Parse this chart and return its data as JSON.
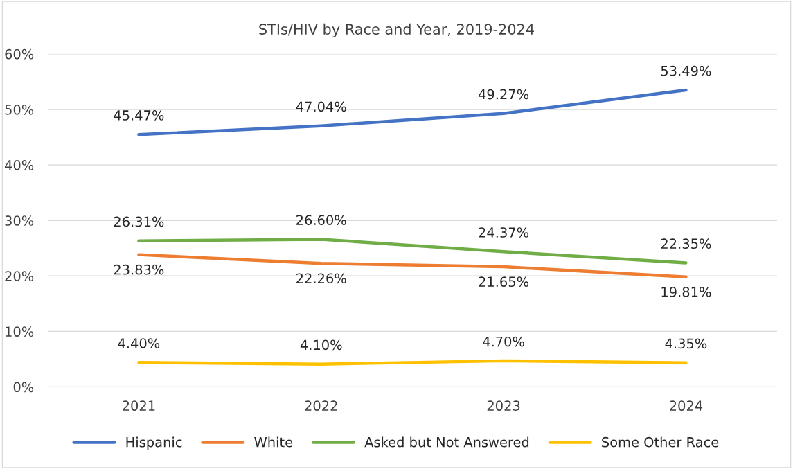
{
  "chart_data": {
    "type": "line",
    "title": "STIs/HIV by Race and Year, 2019-2024",
    "categories": [
      "2021",
      "2022",
      "2023",
      "2024"
    ],
    "series": [
      {
        "name": "Hispanic",
        "color": "#4472c4",
        "values": [
          45.47,
          47.04,
          49.27,
          53.49
        ],
        "value_labels": [
          "45.47%",
          "47.04%",
          "49.27%",
          "53.49%"
        ]
      },
      {
        "name": "White",
        "color": "#ed7d31",
        "values": [
          23.83,
          22.26,
          21.65,
          19.81
        ],
        "value_labels": [
          "23.83%",
          "22.26%",
          "21.65%",
          "19.81%"
        ]
      },
      {
        "name": "Asked but Not Answered",
        "color": "#70ad47",
        "values": [
          26.31,
          26.6,
          24.37,
          22.35
        ],
        "value_labels": [
          "26.31%",
          "26.60%",
          "24.37%",
          "22.35%"
        ]
      },
      {
        "name": "Some Other Race",
        "color": "#ffc000",
        "values": [
          4.4,
          4.1,
          4.7,
          4.35
        ],
        "value_labels": [
          "4.40%",
          "4.10%",
          "4.70%",
          "4.35%"
        ]
      }
    ],
    "ylim": [
      0,
      60
    ],
    "yticks": [
      {
        "value": 0,
        "label": "0%"
      },
      {
        "value": 10,
        "label": "10%"
      },
      {
        "value": 20,
        "label": "20%"
      },
      {
        "value": 30,
        "label": "30%"
      },
      {
        "value": 40,
        "label": "40%"
      },
      {
        "value": 50,
        "label": "50%"
      },
      {
        "value": 60,
        "label": "60%"
      }
    ],
    "grid": "y",
    "legend": "bottom",
    "marker": "none",
    "line_style": "solid"
  }
}
